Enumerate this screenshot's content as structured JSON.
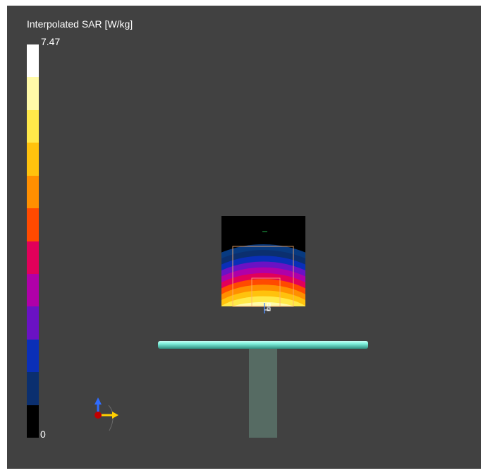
{
  "legend": {
    "title": "Interpolated SAR [W/kg]",
    "max_label": "7.47",
    "min_label": "0",
    "colors_top_to_bottom": [
      "#ffffff",
      "#fffaa8",
      "#ffe94a",
      "#ffc20d",
      "#ff8f00",
      "#ff4a00",
      "#e1005a",
      "#b000a8",
      "#6a12c4",
      "#0a2fb8",
      "#0b2f6f",
      "#000000"
    ]
  },
  "scene": {
    "background": "#414141",
    "sar_field_colors_inner_to_outer": [
      "#ffffff",
      "#fffaa8",
      "#ffe94a",
      "#ffc20d",
      "#ff8f00",
      "#ff4a00",
      "#e1005a",
      "#b000a8",
      "#6a12c4",
      "#0a2fb8",
      "#0b2f6f",
      "#083a80"
    ],
    "dipole_color": "#6fe6d2",
    "phantom_color": "#566b63",
    "axis_colors": {
      "x": "#ffd000",
      "y": "#c00000",
      "z": "#2f6cff"
    }
  }
}
